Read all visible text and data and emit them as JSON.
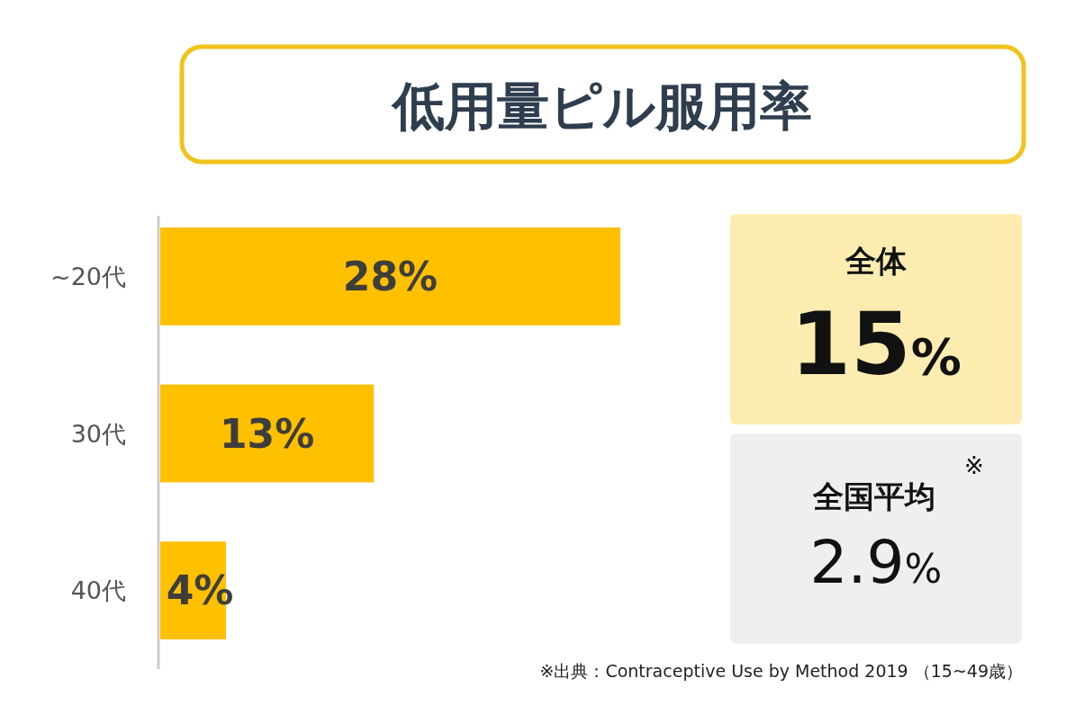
{
  "chart_data": {
    "type": "bar",
    "orientation": "horizontal",
    "title": "低用量ピル服用率",
    "categories": [
      "~20代",
      "30代",
      "40代"
    ],
    "values": [
      28,
      13,
      4
    ],
    "value_labels": [
      "28%",
      "13%",
      "4%"
    ],
    "color": "#ffc000",
    "annotations": [
      "全体",
      "15%",
      "全国平均",
      "※",
      "2.9%",
      "※出典：Contraceptive Use by Method 2019 （15~49歳）"
    ]
  }
}
